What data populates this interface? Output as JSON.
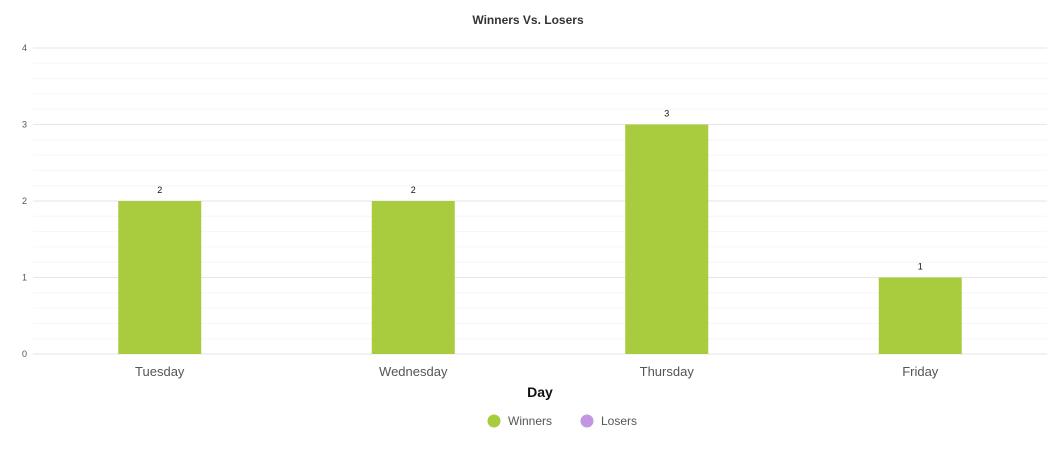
{
  "chart_data": {
    "type": "bar",
    "title": "Winners Vs. Losers",
    "xlabel": "Day",
    "ylabel": "",
    "categories": [
      "Tuesday",
      "Wednesday",
      "Thursday",
      "Friday"
    ],
    "series": [
      {
        "name": "Winners",
        "values": [
          2,
          2,
          3,
          1
        ],
        "color": "#a8cc3e"
      },
      {
        "name": "Losers",
        "values": [
          0,
          0,
          0,
          0
        ],
        "color": "#c396e0"
      }
    ],
    "ylim": [
      0,
      4
    ],
    "yticks": [
      "0",
      "1",
      "2",
      "3",
      "4"
    ],
    "data_labels": [
      "2",
      "2",
      "3",
      "1"
    ],
    "grid": true,
    "legend_position": "bottom-center"
  }
}
